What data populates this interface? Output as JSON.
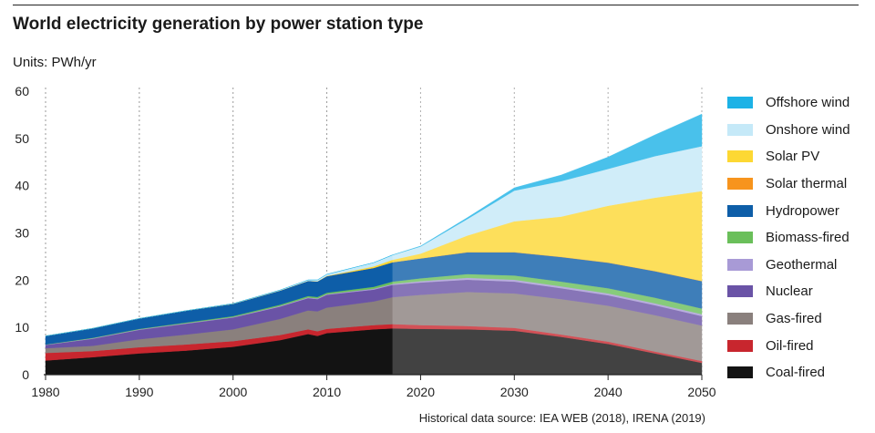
{
  "header": {
    "title": "World electricity generation by power station type",
    "units": "Units: PWh/yr"
  },
  "footer": {
    "source": "Historical data source: IEA WEB (2018), IRENA (2019)"
  },
  "chart_data": {
    "type": "area",
    "stacked": true,
    "title": "World electricity generation by power station type",
    "ylabel": "Units: PWh/yr",
    "xlabel": "",
    "xlim": [
      1980,
      2050
    ],
    "ylim": [
      0,
      60
    ],
    "x_ticks": [
      "1980",
      "1990",
      "2000",
      "2010",
      "2020",
      "2030",
      "2040",
      "2050"
    ],
    "y_ticks": [
      "0",
      "10",
      "20",
      "30",
      "40",
      "50",
      "60"
    ],
    "grid": "vertical dotted",
    "legend_position": "right",
    "forecast_start": 2017,
    "x": [
      1980,
      1985,
      1990,
      1995,
      2000,
      2005,
      2008,
      2009,
      2010,
      2015,
      2017,
      2020,
      2025,
      2030,
      2035,
      2040,
      2045,
      2050
    ],
    "series": [
      {
        "name": "Coal-fired",
        "color": "#131313",
        "values": [
          3.0,
          3.7,
          4.5,
          5.1,
          5.9,
          7.3,
          8.6,
          8.2,
          8.8,
          9.6,
          9.8,
          9.7,
          9.6,
          9.3,
          8.0,
          6.5,
          4.5,
          2.5
        ]
      },
      {
        "name": "Oil-fired",
        "color": "#c8262e",
        "values": [
          1.6,
          1.3,
          1.3,
          1.3,
          1.2,
          1.1,
          1.0,
          1.0,
          0.9,
          0.9,
          0.9,
          0.8,
          0.7,
          0.6,
          0.5,
          0.5,
          0.4,
          0.4
        ]
      },
      {
        "name": "Gas-fired",
        "color": "#8a807d",
        "values": [
          1.0,
          1.1,
          1.7,
          2.1,
          2.5,
          3.4,
          4.0,
          4.2,
          4.5,
          5.0,
          5.7,
          6.4,
          7.2,
          7.3,
          7.5,
          7.6,
          7.7,
          7.5
        ]
      },
      {
        "name": "Nuclear",
        "color": "#6a53a6",
        "values": [
          0.7,
          1.5,
          2.0,
          2.3,
          2.5,
          2.6,
          2.6,
          2.6,
          2.7,
          2.5,
          2.6,
          2.6,
          2.6,
          2.5,
          2.3,
          2.2,
          2.1,
          2.0
        ]
      },
      {
        "name": "Geothermal",
        "color": "#a89ad6",
        "values": [
          0.05,
          0.1,
          0.1,
          0.1,
          0.1,
          0.15,
          0.15,
          0.15,
          0.15,
          0.2,
          0.2,
          0.3,
          0.4,
          0.4,
          0.4,
          0.4,
          0.4,
          0.4
        ]
      },
      {
        "name": "Biomass-fired",
        "color": "#6abf5a",
        "values": [
          0.05,
          0.1,
          0.1,
          0.15,
          0.2,
          0.25,
          0.3,
          0.3,
          0.3,
          0.4,
          0.5,
          0.6,
          0.8,
          0.9,
          1.0,
          1.1,
          1.2,
          1.2
        ]
      },
      {
        "name": "Hydropower",
        "color": "#0e5ea8",
        "values": [
          1.8,
          2.0,
          2.2,
          2.5,
          2.6,
          3.0,
          3.2,
          3.3,
          3.5,
          4.0,
          4.1,
          4.2,
          4.6,
          4.9,
          5.2,
          5.4,
          5.6,
          5.8
        ]
      },
      {
        "name": "Solar thermal",
        "color": "#f7941d",
        "values": [
          0,
          0,
          0,
          0,
          0,
          0,
          0,
          0,
          0,
          0,
          0,
          0.02,
          0.05,
          0.05,
          0.05,
          0.05,
          0.05,
          0.05
        ]
      },
      {
        "name": "Solar PV",
        "color": "#fdd833",
        "values": [
          0,
          0,
          0,
          0,
          0,
          0,
          0,
          0,
          0.05,
          0.3,
          0.5,
          1.0,
          3.5,
          6.5,
          8.5,
          12.0,
          15.5,
          19.0
        ]
      },
      {
        "name": "Onshore wind",
        "color": "#c5e9f8",
        "values": [
          0,
          0,
          0,
          0,
          0.05,
          0.1,
          0.2,
          0.3,
          0.35,
          0.8,
          1.0,
          1.5,
          3.5,
          6.5,
          7.5,
          7.8,
          8.8,
          9.5
        ]
      },
      {
        "name": "Offshore wind",
        "color": "#1cb2e6",
        "values": [
          0,
          0,
          0,
          0,
          0,
          0,
          0,
          0,
          0,
          0.02,
          0.05,
          0.1,
          0.3,
          0.6,
          1.3,
          2.5,
          4.5,
          6.8
        ]
      }
    ]
  }
}
